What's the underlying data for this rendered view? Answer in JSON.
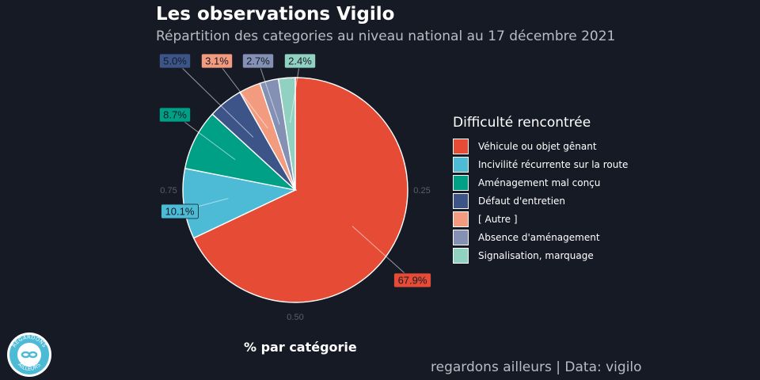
{
  "title": "Les observations Vigilo",
  "subtitle": "Répartition des categories au niveau national au 17 décembre 2021",
  "caption": "regardons ailleurs | Data: vigilo",
  "logo_text": "REGARDONS AILLEURS",
  "chart_data": {
    "type": "pie",
    "title": "Les observations Vigilo",
    "subtitle": "Répartition des categories au niveau national au 17 décembre 2021",
    "xlabel": "% par catégorie",
    "legend_title": "Difficulté rencontrée",
    "legend_position": "right",
    "axis_ticks": [
      "0.25",
      "0.50",
      "0.75"
    ],
    "slices": [
      {
        "label": "Véhicule ou objet gênant",
        "value": 67.9,
        "display": "67.9%",
        "color": "#e64b35"
      },
      {
        "label": "Incivilité récurrente sur la route",
        "value": 10.1,
        "display": "10.1%",
        "color": "#4dbbd5"
      },
      {
        "label": "Aménagement mal conçu",
        "value": 8.7,
        "display": "8.7%",
        "color": "#00a087"
      },
      {
        "label": "Défaut d'entretien",
        "value": 5.0,
        "display": "5.0%",
        "color": "#3c5488"
      },
      {
        "label": "[ Autre ]",
        "value": 3.1,
        "display": "3.1%",
        "color": "#f39b7f"
      },
      {
        "label": "Absence d'aménagement",
        "value": 2.7,
        "display": "2.7%",
        "color": "#8491b4"
      },
      {
        "label": "Signalisation, marquage",
        "value": 2.4,
        "display": "2.4%",
        "color": "#91d1c2"
      }
    ]
  }
}
